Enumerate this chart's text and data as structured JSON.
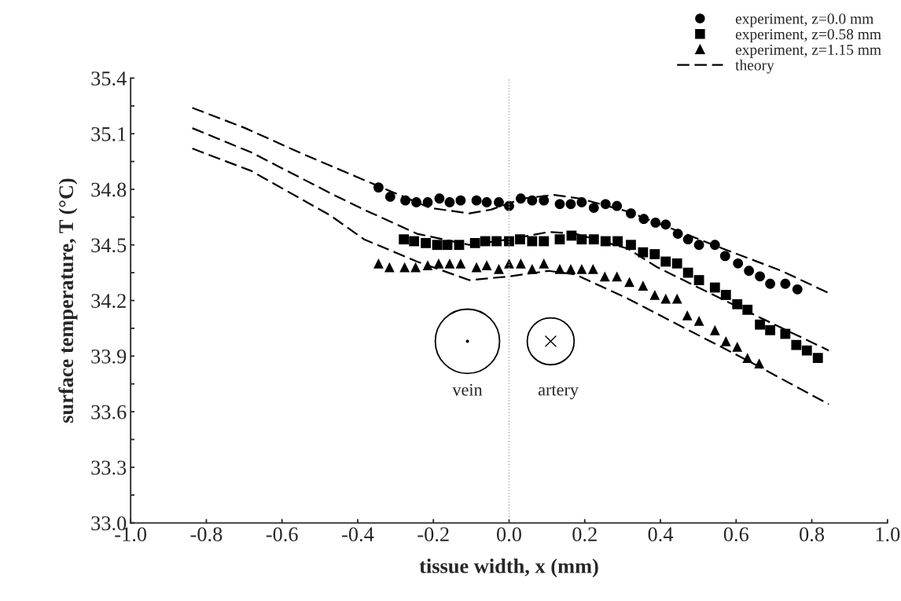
{
  "chart_data": {
    "type": "scatter",
    "xlabel": "tissue width, x (mm)",
    "ylabel": "surface temperature, T (°C)",
    "xlim": [
      -1.0,
      1.0
    ],
    "ylim": [
      33.0,
      35.4
    ],
    "xticks": [
      {
        "value": -1.0,
        "label": "-1.0"
      },
      {
        "value": -0.8,
        "label": "-0.8"
      },
      {
        "value": -0.6,
        "label": "-0.6"
      },
      {
        "value": -0.4,
        "label": "-0.4"
      },
      {
        "value": -0.2,
        "label": "-0.2"
      },
      {
        "value": 0.0,
        "label": "0.0"
      },
      {
        "value": 0.2,
        "label": "0.2"
      },
      {
        "value": 0.4,
        "label": "0.4"
      },
      {
        "value": 0.6,
        "label": "0.6"
      },
      {
        "value": 0.8,
        "label": "0.8"
      },
      {
        "value": 1.0,
        "label": "1.0"
      }
    ],
    "yticks": [
      {
        "value": 33.0,
        "label": "33.0"
      },
      {
        "value": 33.15,
        "label": null
      },
      {
        "value": 33.3,
        "label": "33.3"
      },
      {
        "value": 33.45,
        "label": null
      },
      {
        "value": 33.6,
        "label": "33.6"
      },
      {
        "value": 33.75,
        "label": null
      },
      {
        "value": 33.9,
        "label": "33.9"
      },
      {
        "value": 34.05,
        "label": null
      },
      {
        "value": 34.2,
        "label": "34.2"
      },
      {
        "value": 34.35,
        "label": null
      },
      {
        "value": 34.5,
        "label": "34.5"
      },
      {
        "value": 34.65,
        "label": null
      },
      {
        "value": 34.8,
        "label": "34.8"
      },
      {
        "value": 34.95,
        "label": null
      },
      {
        "value": 35.1,
        "label": "35.1"
      },
      {
        "value": 35.25,
        "label": null
      },
      {
        "value": 35.4,
        "label": "35.4"
      }
    ],
    "grid": false,
    "legend": "top right",
    "ref_lines": [
      {
        "axis": "x",
        "value": 0.0,
        "color": "#aaaaaa",
        "line_style": "dotted"
      }
    ],
    "annotations": [
      "vein",
      "artery"
    ],
    "series": [
      {
        "name": "experiment, z=0.0 mm",
        "marker": "circle",
        "color": "#000000",
        "x": [
          -0.345,
          -0.314,
          -0.274,
          -0.245,
          -0.215,
          -0.184,
          -0.157,
          -0.128,
          -0.086,
          -0.059,
          -0.027,
          0.0,
          0.031,
          0.061,
          0.092,
          0.134,
          0.163,
          0.192,
          0.224,
          0.255,
          0.285,
          0.322,
          0.356,
          0.387,
          0.414,
          0.446,
          0.473,
          0.502,
          0.544,
          0.571,
          0.605,
          0.634,
          0.663,
          0.69,
          0.73,
          0.762
        ],
        "values": [
          34.81,
          34.76,
          34.74,
          34.73,
          34.73,
          34.75,
          34.73,
          34.74,
          34.74,
          34.73,
          34.73,
          34.71,
          34.75,
          34.74,
          34.74,
          34.72,
          34.72,
          34.73,
          34.7,
          34.72,
          34.71,
          34.67,
          34.64,
          34.62,
          34.61,
          34.56,
          34.53,
          34.5,
          34.5,
          34.44,
          34.4,
          34.36,
          34.33,
          34.29,
          34.29,
          34.26
        ]
      },
      {
        "name": "experiment, z=0.58 mm",
        "marker": "square",
        "color": "#000000",
        "x": [
          -0.278,
          -0.251,
          -0.22,
          -0.19,
          -0.163,
          -0.132,
          -0.09,
          -0.063,
          -0.033,
          0.0,
          0.029,
          0.061,
          0.092,
          0.134,
          0.165,
          0.192,
          0.224,
          0.255,
          0.287,
          0.322,
          0.354,
          0.385,
          0.414,
          0.444,
          0.473,
          0.502,
          0.544,
          0.573,
          0.603,
          0.63,
          0.663,
          0.69,
          0.73,
          0.759,
          0.787,
          0.816
        ],
        "values": [
          34.53,
          34.52,
          34.51,
          34.5,
          34.5,
          34.5,
          34.51,
          34.52,
          34.52,
          34.52,
          34.53,
          34.52,
          34.52,
          34.53,
          34.55,
          34.53,
          34.53,
          34.52,
          34.52,
          34.5,
          34.46,
          34.45,
          34.41,
          34.4,
          34.35,
          34.31,
          34.27,
          34.23,
          34.18,
          34.15,
          34.07,
          34.04,
          34.02,
          33.96,
          33.93,
          33.89
        ]
      },
      {
        "name": "experiment, z=1.15 mm",
        "marker": "triangle",
        "color": "#000000",
        "x": [
          -0.345,
          -0.316,
          -0.276,
          -0.247,
          -0.215,
          -0.186,
          -0.157,
          -0.128,
          -0.086,
          -0.059,
          -0.027,
          0.0,
          0.031,
          0.061,
          0.092,
          0.134,
          0.163,
          0.192,
          0.222,
          0.253,
          0.285,
          0.318,
          0.354,
          0.385,
          0.414,
          0.444,
          0.471,
          0.502,
          0.544,
          0.573,
          0.603,
          0.63,
          0.661
        ],
        "values": [
          34.4,
          34.38,
          34.38,
          34.38,
          34.39,
          34.4,
          34.4,
          34.4,
          34.38,
          34.39,
          34.37,
          34.4,
          34.4,
          34.37,
          34.4,
          34.37,
          34.37,
          34.37,
          34.37,
          34.33,
          34.33,
          34.3,
          34.28,
          34.23,
          34.21,
          34.21,
          34.12,
          34.09,
          34.04,
          33.98,
          33.95,
          33.89,
          33.86
        ]
      },
      {
        "name": "theory",
        "type": "line",
        "line_style": "dashed",
        "color": "#000000",
        "x": [
          -0.837,
          -0.697,
          -0.544,
          -0.383,
          -0.209,
          -0.105,
          -0.048,
          0.036,
          0.119,
          0.188,
          0.314,
          0.565,
          0.72,
          0.845
        ],
        "values": [
          35.24,
          35.13,
          34.99,
          34.85,
          34.7,
          34.67,
          34.69,
          34.75,
          34.77,
          34.75,
          34.68,
          34.48,
          34.36,
          34.24
        ]
      },
      {
        "type": "line",
        "line_style": "dashed",
        "color": "#000000",
        "x": [
          -0.837,
          -0.682,
          -0.473,
          -0.383,
          -0.243,
          -0.105,
          0.0,
          0.105,
          0.176,
          0.314,
          0.391,
          0.6,
          0.845
        ],
        "values": [
          35.13,
          35.0,
          34.78,
          34.69,
          34.56,
          34.5,
          34.53,
          34.57,
          34.56,
          34.48,
          34.38,
          34.17,
          33.93
        ]
      },
      {
        "type": "line",
        "line_style": "dashed",
        "color": "#000000",
        "x": [
          -0.837,
          -0.682,
          -0.473,
          -0.383,
          -0.243,
          -0.105,
          0.0,
          0.105,
          0.176,
          0.314,
          0.427,
          0.636,
          0.845
        ],
        "values": [
          35.02,
          34.9,
          34.66,
          34.53,
          34.41,
          34.31,
          34.33,
          34.36,
          34.34,
          34.21,
          34.09,
          33.87,
          33.64
        ]
      }
    ]
  }
}
